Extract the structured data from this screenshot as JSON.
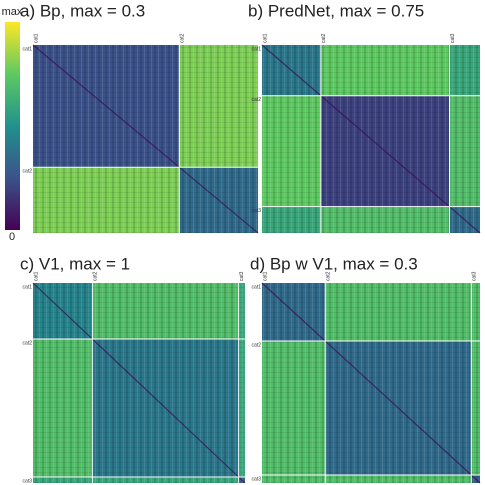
{
  "colormap": [
    "#440154",
    "#3b528b",
    "#21918c",
    "#5ec962",
    "#fde725"
  ],
  "colorbar": {
    "top": "max",
    "bottom": 0
  },
  "chart_data": [
    {
      "type": "heatmap",
      "title": "a) Bp, max = 0.3",
      "categories": [
        "cat1",
        "cat2"
      ],
      "category_sizes": [
        65,
        35
      ],
      "matrix": [
        [
          0.25,
          0.8
        ],
        [
          0.8,
          0.35
        ]
      ]
    },
    {
      "type": "heatmap",
      "title": "b) PredNet, max = 0.75",
      "categories": [
        "cat1",
        "cat2",
        "cat3"
      ],
      "category_sizes": [
        27,
        59,
        14
      ],
      "matrix": [
        [
          0.4,
          0.75,
          0.6
        ],
        [
          0.75,
          0.2,
          0.7
        ],
        [
          0.6,
          0.7,
          0.35
        ]
      ]
    },
    {
      "type": "heatmap",
      "title": "c) V1, max = 1",
      "categories": [
        "cat1",
        "cat2",
        "cat3"
      ],
      "category_sizes": [
        28,
        69,
        3
      ],
      "matrix": [
        [
          0.45,
          0.7,
          0.6
        ],
        [
          0.7,
          0.4,
          0.6
        ],
        [
          0.6,
          0.6,
          0.3
        ]
      ]
    },
    {
      "type": "heatmap",
      "title": "d) Bp w V1, max = 0.3",
      "categories": [
        "cat1",
        "cat2",
        "cat3"
      ],
      "category_sizes": [
        29,
        67,
        4
      ],
      "matrix": [
        [
          0.35,
          0.7,
          0.7
        ],
        [
          0.7,
          0.35,
          0.7
        ],
        [
          0.7,
          0.7,
          0.3
        ]
      ]
    }
  ]
}
